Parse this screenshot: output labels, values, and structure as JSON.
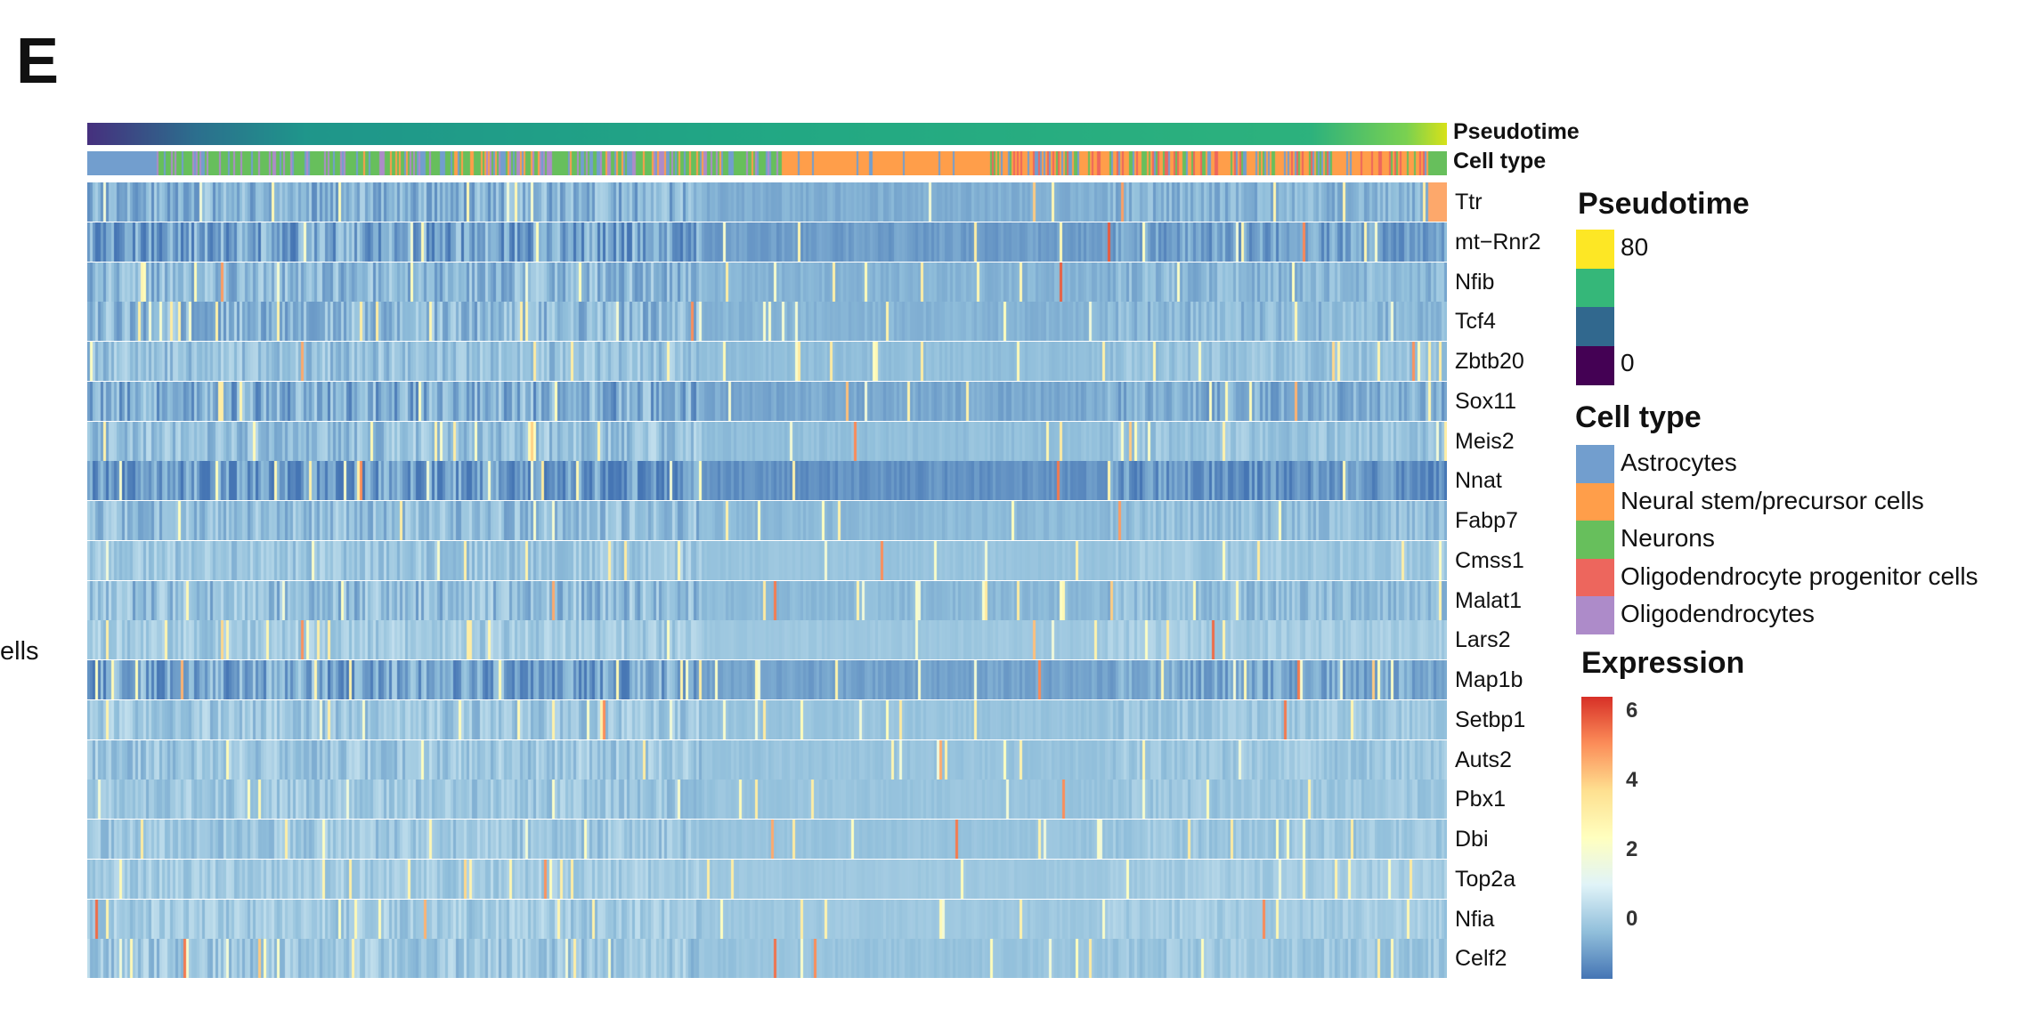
{
  "panel_label": "E",
  "side_text": "ells",
  "chart_data": {
    "type": "heatmap",
    "annotation_bars": [
      "Pseudotime",
      "Cell type"
    ],
    "genes": [
      "Ttr",
      "mt−Rnr2",
      "Nfib",
      "Tcf4",
      "Zbtb20",
      "Sox11",
      "Meis2",
      "Nnat",
      "Fabp7",
      "Cmss1",
      "Malat1",
      "Lars2",
      "Map1b",
      "Setbp1",
      "Auts2",
      "Pbx1",
      "Dbi",
      "Top2a",
      "Nfia",
      "Celf2"
    ],
    "legends": {
      "pseudotime": {
        "title": "Pseudotime",
        "range": [
          0,
          80
        ],
        "tick_labels": [
          "80",
          "0"
        ],
        "colors": [
          "#fde725",
          "#35b779",
          "#31688e",
          "#440154"
        ]
      },
      "cell_type": {
        "title": "Cell type",
        "items": [
          {
            "label": "Astrocytes",
            "color": "#729ece"
          },
          {
            "label": "Neural stem/precursor cells",
            "color": "#ff9e4a"
          },
          {
            "label": "Neurons",
            "color": "#67bf5c"
          },
          {
            "label": "Oligodendrocyte progenitor cells",
            "color": "#ed665d"
          },
          {
            "label": "Oligodendrocytes",
            "color": "#ad8bc9"
          }
        ]
      },
      "expression": {
        "title": "Expression",
        "tick_labels": [
          "6",
          "4",
          "2",
          "0"
        ],
        "colors": [
          "#d73027",
          "#fc8d59",
          "#fee090",
          "#ffffbf",
          "#e0f3f8",
          "#91bfdb",
          "#4575b4"
        ]
      }
    }
  }
}
